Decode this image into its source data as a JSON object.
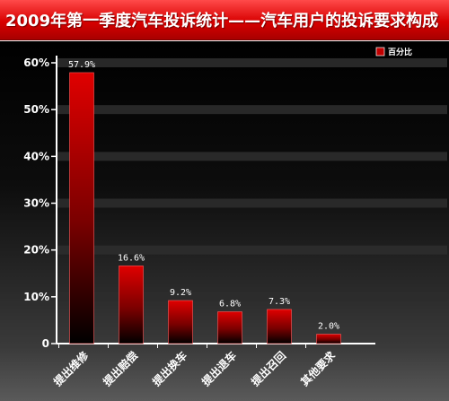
{
  "title": "2009年第一季度汽车投诉统计——汽车用户的投诉要求构成",
  "legend": {
    "label": "百分比"
  },
  "colors": {
    "bar_top": "#e00000",
    "bar_bottom": "#000000",
    "title_bar": "#d80000"
  },
  "chart_data": {
    "type": "bar",
    "categories": [
      "提出维修",
      "提出赔偿",
      "提出换车",
      "提出退车",
      "提出召回",
      "其他要求"
    ],
    "series": [
      {
        "name": "百分比",
        "values": [
          57.9,
          16.6,
          9.2,
          6.8,
          7.3,
          2.0
        ]
      }
    ],
    "data_labels": [
      "57.9%",
      "16.6%",
      "9.2%",
      "6.8%",
      "7.3%",
      "2.0%"
    ],
    "ylim": [
      0,
      60
    ],
    "yticks": [
      0,
      10,
      20,
      30,
      40,
      50,
      60
    ],
    "ytick_labels": [
      "0",
      "10%",
      "20%",
      "30%",
      "40%",
      "50%",
      "60%"
    ],
    "grid": true,
    "legend_position": "top-right",
    "xlabel": "",
    "ylabel": ""
  }
}
